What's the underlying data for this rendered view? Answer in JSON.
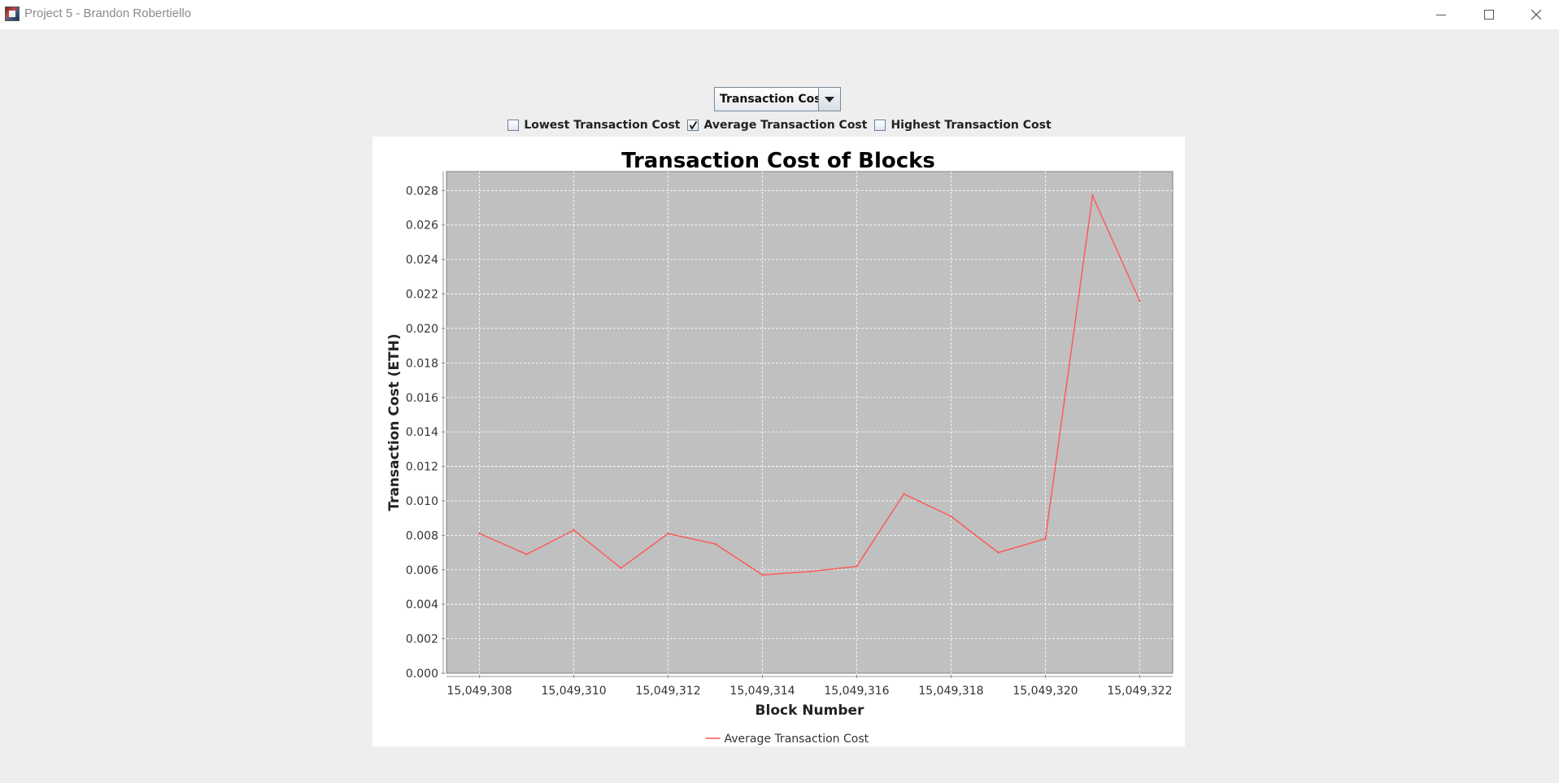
{
  "window": {
    "title": "Project 5 - Brandon Robertiello",
    "controls": [
      "minimize-icon",
      "maximize-icon",
      "close-icon"
    ]
  },
  "metric_select": {
    "selected": "Transaction Cost"
  },
  "checkboxes": [
    {
      "label": "Lowest Transaction Cost",
      "checked": false
    },
    {
      "label": "Average Transaction Cost",
      "checked": true
    },
    {
      "label": "Highest Transaction Cost",
      "checked": false
    }
  ],
  "colors": {
    "plot_background": "#c0c0c0",
    "series_line": "#ff5555",
    "gridline": "#ffffff"
  },
  "chart_data": {
    "type": "line",
    "title": "Transaction Cost of Blocks",
    "xlabel": "Block Number",
    "ylabel": "Transaction Cost (ETH)",
    "x": [
      15049308,
      15049309,
      15049310,
      15049311,
      15049312,
      15049313,
      15049314,
      15049315,
      15049316,
      15049317,
      15049318,
      15049319,
      15049320,
      15049321,
      15049322
    ],
    "series": [
      {
        "name": "Average Transaction Cost",
        "values": [
          0.0081,
          0.0069,
          0.0083,
          0.0061,
          0.0081,
          0.0075,
          0.0057,
          0.0059,
          0.0062,
          0.0104,
          0.0091,
          0.007,
          0.0078,
          0.0277,
          0.0216
        ]
      }
    ],
    "xticks": [
      "15,049,308",
      "15,049,310",
      "15,049,312",
      "15,049,314",
      "15,049,316",
      "15,049,318",
      "15,049,320",
      "15,049,322"
    ],
    "yticks": [
      "0.000",
      "0.002",
      "0.004",
      "0.006",
      "0.008",
      "0.010",
      "0.012",
      "0.014",
      "0.016",
      "0.018",
      "0.020",
      "0.022",
      "0.024",
      "0.026",
      "0.028"
    ],
    "xlim": [
      15049307.3,
      15049322.7
    ],
    "ylim": [
      0,
      0.0291
    ],
    "grid": true,
    "legend_position": "bottom-center"
  }
}
